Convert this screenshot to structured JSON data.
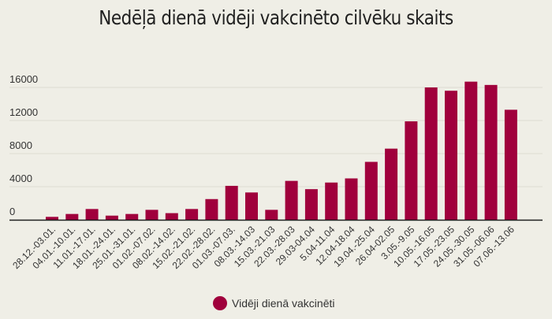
{
  "chart_data": {
    "type": "bar",
    "title": "Nedēļā dienā vidēji vakcinēto cilvēku skaits",
    "xlabel": "",
    "ylabel": "",
    "ylim": [
      0,
      16000
    ],
    "yticks": [
      0,
      4000,
      8000,
      12000,
      16000
    ],
    "grid": true,
    "legend_position": "bottom",
    "categories": [
      "28.12.-03.01.",
      "04.01.-10.01.",
      "11.01.-17.01.",
      "18.01.-24.01.",
      "25.01.-31.01.",
      "01.02.-07.02.",
      "08.02.-14.02.",
      "15.02.-21.02.",
      "22.02.-28.02.",
      "01.03.-07.03.",
      "08.03.-14.03",
      "15.03.-21.03",
      "22.03.-28.03",
      "29.03-04.04",
      "5.04-11.04",
      "12.04-18.04",
      "19.04.-25.04",
      "26.04-02.05",
      "3.05.-9.05",
      "10.05.-16.05",
      "17.05.-23.05",
      "24.05.-30.05",
      "31.05.-06.06",
      "07.06.-13.06"
    ],
    "series": [
      {
        "name": "Vidēji dienā vakcinēti",
        "color": "#a0003c",
        "values": [
          350,
          700,
          1300,
          500,
          700,
          1200,
          800,
          1300,
          2500,
          4100,
          3300,
          1200,
          4700,
          3700,
          4500,
          5000,
          7000,
          8600,
          11900,
          16000,
          15600,
          16700,
          16300,
          13300
        ]
      }
    ]
  }
}
